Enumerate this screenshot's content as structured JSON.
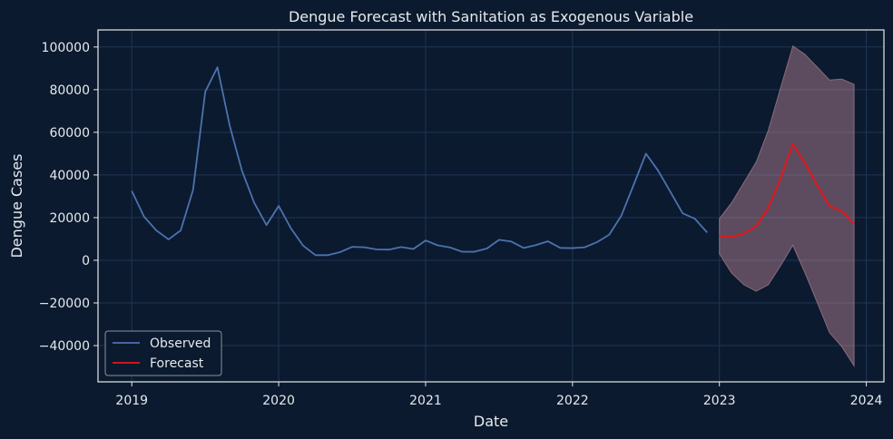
{
  "chart_data": {
    "type": "line",
    "title": "Dengue Forecast with Sanitation as Exogenous Variable",
    "xlabel": "Date",
    "ylabel": "Dengue Cases",
    "xlim": [
      2018.77,
      2024.12
    ],
    "ylim": [
      -57000,
      108000
    ],
    "x_ticks": [
      2019,
      2020,
      2021,
      2022,
      2023,
      2024
    ],
    "x_tick_labels": [
      "2019",
      "2020",
      "2021",
      "2022",
      "2023",
      "2024"
    ],
    "y_ticks": [
      -40000,
      -20000,
      0,
      20000,
      40000,
      60000,
      80000,
      100000
    ],
    "y_tick_labels": [
      "−40000",
      "−20000",
      "0",
      "20000",
      "40000",
      "60000",
      "80000",
      "100000"
    ],
    "grid": true,
    "legend_position": "lower-left",
    "colors": {
      "background": "#0b1a2e",
      "grid": "#1d3657",
      "observed": "#4c72b0",
      "forecast": "#e8151b",
      "band": "#c08a9c",
      "text": "#e6e9ee",
      "frame": "#e6e9ee"
    },
    "series": [
      {
        "name": "Observed",
        "x": [
          2019.0,
          2019.083,
          2019.167,
          2019.25,
          2019.333,
          2019.417,
          2019.5,
          2019.583,
          2019.667,
          2019.75,
          2019.833,
          2019.917,
          2020.0,
          2020.083,
          2020.167,
          2020.25,
          2020.333,
          2020.417,
          2020.5,
          2020.583,
          2020.667,
          2020.75,
          2020.833,
          2020.917,
          2021.0,
          2021.083,
          2021.167,
          2021.25,
          2021.333,
          2021.417,
          2021.5,
          2021.583,
          2021.667,
          2021.75,
          2021.833,
          2021.917,
          2022.0,
          2022.083,
          2022.167,
          2022.25,
          2022.333,
          2022.417,
          2022.5,
          2022.583,
          2022.667,
          2022.75,
          2022.833,
          2022.917
        ],
        "values": [
          32500,
          20500,
          14000,
          9800,
          14000,
          33000,
          79000,
          90500,
          63000,
          42000,
          27000,
          16500,
          25500,
          15000,
          6800,
          2400,
          2400,
          3800,
          6300,
          6100,
          5100,
          5000,
          6200,
          5300,
          9300,
          7000,
          6000,
          4000,
          4000,
          5500,
          9600,
          8800,
          5800,
          7100,
          8900,
          5800,
          5700,
          6100,
          8500,
          12000,
          21000,
          35500,
          50000,
          42000,
          32000,
          22000,
          19500,
          13000
        ]
      },
      {
        "name": "Forecast",
        "x": [
          2023.0,
          2023.083,
          2023.167,
          2023.25,
          2023.333,
          2023.417,
          2023.5,
          2023.583,
          2023.667,
          2023.75,
          2023.833,
          2023.917
        ],
        "values": [
          11500,
          11000,
          12500,
          16000,
          24500,
          38500,
          54500,
          45500,
          35000,
          25500,
          23000,
          17000
        ],
        "lower": [
          3000,
          -6000,
          -11500,
          -14500,
          -11500,
          -2500,
          7000,
          -6000,
          -20000,
          -34000,
          -40500,
          -49500
        ],
        "upper": [
          19500,
          27000,
          36500,
          46000,
          61000,
          81000,
          100500,
          96500,
          90500,
          84500,
          85000,
          82500
        ]
      }
    ]
  }
}
